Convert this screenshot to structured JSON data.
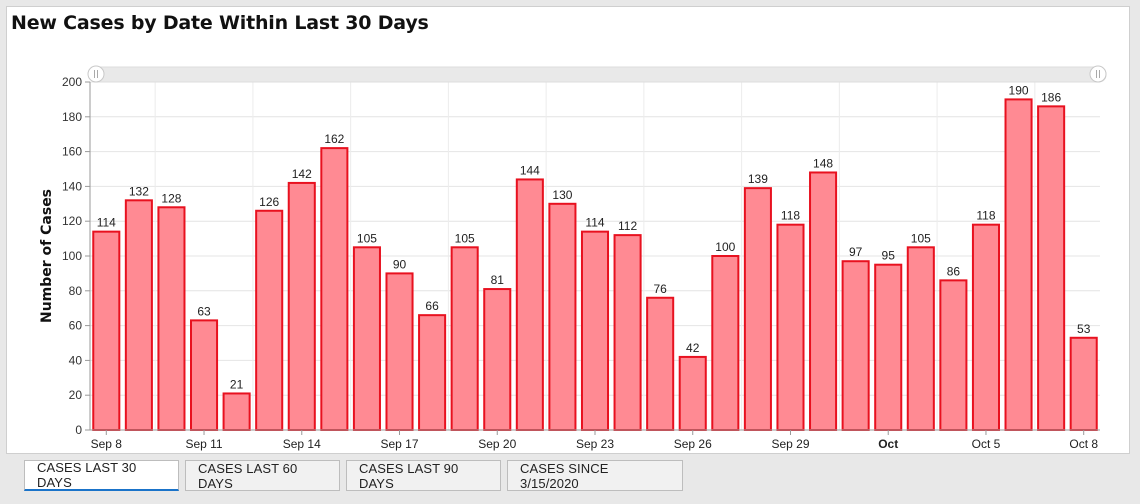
{
  "page": {
    "title": "New Cases by Date Within Last 30 Days"
  },
  "tabs": [
    {
      "label": "CASES LAST 30 DAYS",
      "active": true
    },
    {
      "label": "CASES LAST 60 DAYS",
      "active": false
    },
    {
      "label": "CASES LAST 90 DAYS",
      "active": false
    },
    {
      "label": "CASES SINCE 3/15/2020",
      "active": false
    }
  ],
  "colors": {
    "bar_fill": "#ff8a93",
    "bar_stroke": "#e8111f",
    "tab_accent": "#1a73c9"
  },
  "chart_data": {
    "type": "bar",
    "title": "New Cases by Date Within Last 30 Days",
    "xlabel": "",
    "ylabel": "Number of Cases",
    "ylim": [
      0,
      200
    ],
    "yticks": [
      0,
      20,
      40,
      60,
      80,
      100,
      120,
      140,
      160,
      180,
      200
    ],
    "grid": true,
    "categories": [
      "Sep 8",
      "Sep 9",
      "Sep 10",
      "Sep 11",
      "Sep 12",
      "Sep 13",
      "Sep 14",
      "Sep 15",
      "Sep 16",
      "Sep 17",
      "Sep 18",
      "Sep 19",
      "Sep 20",
      "Sep 21",
      "Sep 22",
      "Sep 23",
      "Sep 24",
      "Sep 25",
      "Sep 26",
      "Sep 27",
      "Sep 28",
      "Sep 29",
      "Sep 30",
      "Oct 1",
      "Oct 2",
      "Oct 3",
      "Oct 4",
      "Oct 5",
      "Oct 6",
      "Oct 7",
      "Oct 8"
    ],
    "values": [
      114,
      132,
      128,
      63,
      21,
      126,
      142,
      162,
      105,
      90,
      66,
      105,
      81,
      144,
      130,
      114,
      112,
      76,
      42,
      100,
      139,
      118,
      148,
      97,
      95,
      105,
      86,
      118,
      190,
      186,
      53
    ],
    "x_tick_labels": [
      {
        "index": 0,
        "label": "Sep 8",
        "bold": false
      },
      {
        "index": 3,
        "label": "Sep 11",
        "bold": false
      },
      {
        "index": 6,
        "label": "Sep 14",
        "bold": false
      },
      {
        "index": 9,
        "label": "Sep 17",
        "bold": false
      },
      {
        "index": 12,
        "label": "Sep 20",
        "bold": false
      },
      {
        "index": 15,
        "label": "Sep 23",
        "bold": false
      },
      {
        "index": 18,
        "label": "Sep 26",
        "bold": false
      },
      {
        "index": 21,
        "label": "Sep 29",
        "bold": false
      },
      {
        "index": 24,
        "label": "Oct",
        "bold": true
      },
      {
        "index": 27,
        "label": "Oct 5",
        "bold": false
      },
      {
        "index": 30,
        "label": "Oct 8",
        "bold": false
      }
    ]
  }
}
